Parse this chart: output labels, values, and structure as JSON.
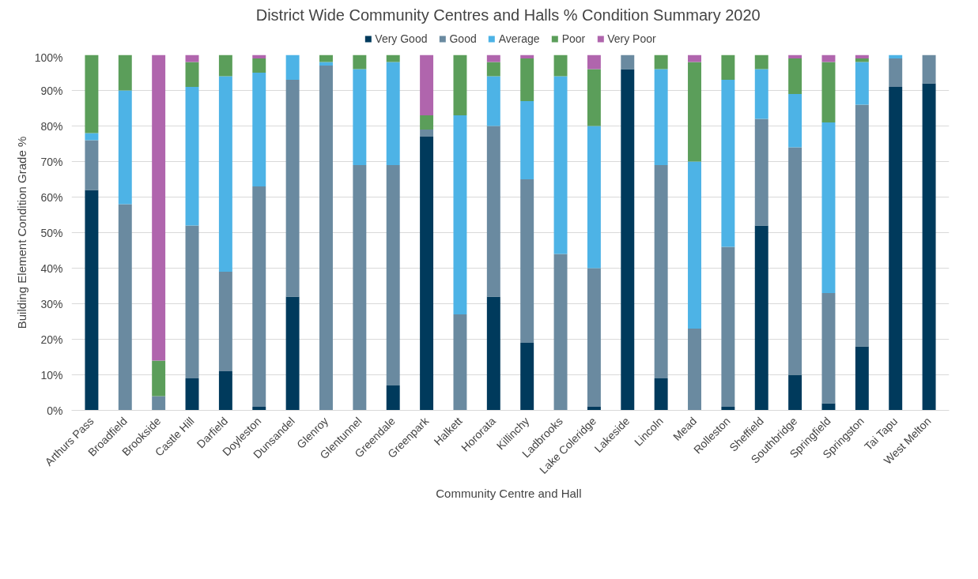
{
  "chart_data": {
    "type": "bar",
    "stacked": true,
    "title": "District Wide Community  Centres and Halls % Condition Summary 2020",
    "xlabel": "Community  Centre and Hall",
    "ylabel": "Building Element Condition Grade %",
    "categories": [
      "Arthurs Pass",
      "Broadfield",
      "Brookside",
      "Castle Hill",
      "Darfield",
      "Doyleston",
      "Dunsandel",
      "Glenroy",
      "Glentunnel",
      "Greendale",
      "Greenpark",
      "Halkett",
      "Hororata",
      "Killinchy",
      "Ladbrooks",
      "Lake Coleridge",
      "Lakeside",
      "Lincoln",
      "Mead",
      "Rolleston",
      "Sheffield",
      "Southbridge",
      "Springfield",
      "Springston",
      "Tai Tapu",
      "West Melton"
    ],
    "series": [
      {
        "name": "Very Good",
        "color": "#003a5c",
        "values": [
          62,
          0,
          0,
          9,
          11,
          1,
          32,
          0,
          0,
          7,
          77,
          0,
          32,
          19,
          0,
          1,
          96,
          9,
          0,
          1,
          52,
          10,
          2,
          18,
          91,
          92
        ]
      },
      {
        "name": "Good",
        "color": "#6a8aa0",
        "values": [
          14,
          58,
          4,
          43,
          28,
          62,
          61,
          97,
          69,
          62,
          2,
          27,
          48,
          46,
          44,
          39,
          4,
          60,
          23,
          45,
          30,
          64,
          31,
          68,
          8,
          8
        ]
      },
      {
        "name": "Average",
        "color": "#4db3e6",
        "values": [
          2,
          32,
          0,
          39,
          55,
          32,
          7,
          1,
          27,
          29,
          0,
          56,
          14,
          22,
          50,
          40,
          0,
          27,
          47,
          47,
          14,
          15,
          48,
          12,
          1,
          0
        ]
      },
      {
        "name": "Poor",
        "color": "#5b9e5a",
        "values": [
          22,
          10,
          10,
          7,
          6,
          4,
          0,
          2,
          4,
          2,
          4,
          17,
          4,
          12,
          6,
          16,
          0,
          4,
          28,
          7,
          4,
          10,
          17,
          1,
          0,
          0
        ]
      },
      {
        "name": "Very Poor",
        "color": "#b065ad",
        "values": [
          0,
          0,
          86,
          2,
          0,
          1,
          0,
          0,
          0,
          0,
          17,
          0,
          2,
          1,
          0,
          4,
          0,
          0,
          2,
          0,
          0,
          1,
          2,
          1,
          0,
          0
        ]
      }
    ],
    "ylim": [
      0,
      100
    ],
    "yticks": [
      {
        "value": 0,
        "label": "0%"
      },
      {
        "value": 10,
        "label": "10%"
      },
      {
        "value": 20,
        "label": "20%"
      },
      {
        "value": 30,
        "label": "30%"
      },
      {
        "value": 40,
        "label": "40%"
      },
      {
        "value": 50,
        "label": "50%"
      },
      {
        "value": 60,
        "label": "60%"
      },
      {
        "value": 70,
        "label": "70%"
      },
      {
        "value": 80,
        "label": "80%"
      },
      {
        "value": 90,
        "label": "90%"
      },
      {
        "value": 100,
        "label": "100%"
      }
    ],
    "grid": "y",
    "legend": "top"
  }
}
